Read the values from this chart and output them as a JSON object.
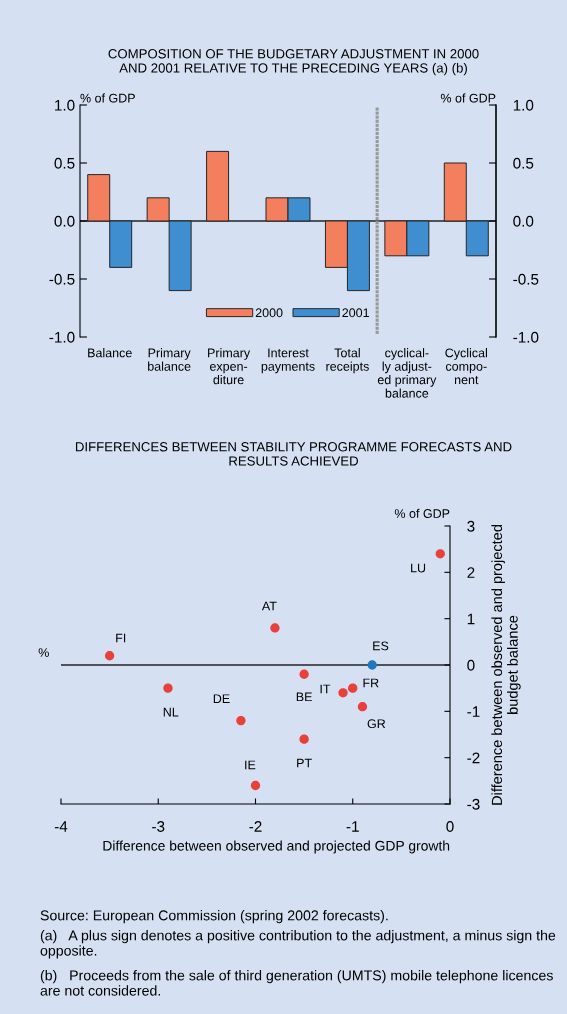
{
  "chart_data": [
    {
      "type": "bar",
      "title": "COMPOSITION OF THE BUDGETARY ADJUSTMENT IN 2000\nAND 2001 RELATIVE TO THE PRECEDING YEARS (a) (b)",
      "ylabel": "% of GDP",
      "y2label": "% of GDP",
      "categories": [
        "Balance",
        "Primary\nbalance",
        "Primary\nexpen-\nditure",
        "Interest\npayments",
        "Total\nreceipts",
        "cyclical-\nly adjust-\ned primary\nbalance",
        "Cyclical\ncompo-\nnent"
      ],
      "series": [
        {
          "name": "2000",
          "color": "#f47f5f",
          "values": [
            0.4,
            0.2,
            0.6,
            0.2,
            -0.4,
            -0.3,
            0.5
          ]
        },
        {
          "name": "2001",
          "color": "#3f8fd0",
          "values": [
            -0.4,
            -0.6,
            null,
            0.2,
            -0.6,
            -0.3,
            -0.3
          ]
        }
      ],
      "ylim": [
        -1.0,
        1.0
      ],
      "yticks": [
        {
          "value": -1.0,
          "label": "-1.0"
        },
        {
          "value": -0.5,
          "label": "-0.5"
        },
        {
          "value": 0.0,
          "label": "0.0"
        },
        {
          "value": 0.5,
          "label": "0.5"
        },
        {
          "value": 1.0,
          "label": "1.0"
        }
      ],
      "y2lim": [
        -1.0,
        1.0
      ],
      "y2ticks": [
        {
          "value": -1.0,
          "label": "-1.0"
        },
        {
          "value": -0.5,
          "label": "-0.5"
        },
        {
          "value": 0.0,
          "label": "0.0"
        },
        {
          "value": 0.5,
          "label": "0.5"
        },
        {
          "value": 1.0,
          "label": "1.0"
        }
      ],
      "ref_lines": [
        {
          "axis": "y",
          "value": 0,
          "color": "#222222",
          "line_style": "solid"
        }
      ],
      "grid": false,
      "legend": "bottom"
    },
    {
      "type": "scatter",
      "title": "DIFFERENCES BETWEEN STABILITY PROGRAMME FORECASTS AND\nRESULTS ACHIEVED",
      "xlabel": "Difference between observed and projected GDP growth",
      "ylabel": "Difference between observed and projected\nbudget balance",
      "series": [
        {
          "x": [
            -3.5,
            -2.9,
            -2.15,
            -2.0,
            -1.8,
            -1.5,
            -1.5,
            -1.1,
            -1.0,
            -0.9,
            -0.8,
            -0.1
          ],
          "values": [
            0.2,
            -0.5,
            -1.2,
            -2.6,
            0.8,
            -0.2,
            -1.6,
            -0.6,
            -0.5,
            -0.9,
            0.0,
            2.4
          ],
          "colors": [
            "#e8403a",
            "#e8403a",
            "#e8403a",
            "#e8403a",
            "#e8403a",
            "#e8403a",
            "#e8403a",
            "#e8403a",
            "#e8403a",
            "#e8403a",
            "#1f78c1",
            "#e8403a"
          ]
        }
      ],
      "annotations": [
        {
          "text": "FI",
          "x": -3.5,
          "y": 0.2
        },
        {
          "text": "NL",
          "x": -2.9,
          "y": -0.5
        },
        {
          "text": "DE",
          "x": -2.15,
          "y": -1.2
        },
        {
          "text": "IE",
          "x": -2.0,
          "y": -2.6
        },
        {
          "text": "AT",
          "x": -1.8,
          "y": 0.8
        },
        {
          "text": "BE",
          "x": -1.5,
          "y": -0.2
        },
        {
          "text": "PT",
          "x": -1.5,
          "y": -1.6
        },
        {
          "text": "IT",
          "x": -1.1,
          "y": -0.6
        },
        {
          "text": "FR",
          "x": -1.0,
          "y": -0.5
        },
        {
          "text": "GR",
          "x": -0.9,
          "y": -0.9
        },
        {
          "text": "ES",
          "x": -0.8,
          "y": 0.0
        },
        {
          "text": "LU",
          "x": -0.1,
          "y": 2.4
        },
        "%",
        "% of GDP",
        "Source: European Commission (spring 2002 forecasts).",
        "(a)   A plus sign denotes a positive contribution to the adjustment, a minus sign the opposite.",
        "(b)   Proceeds from the sale of third generation (UMTS) mobile telephone licences are not considered."
      ],
      "xlim": [
        -4,
        0
      ],
      "xticks": [
        -4,
        -3,
        -2,
        -1,
        0
      ],
      "ylim": [
        -3,
        3
      ],
      "yticks": [
        -3,
        -2,
        -1,
        0,
        1,
        2,
        3
      ],
      "ref_lines": [
        {
          "axis": "y",
          "value": 0,
          "color": "#222222",
          "line_style": "solid"
        }
      ],
      "grid": false,
      "marker": "circle"
    }
  ]
}
